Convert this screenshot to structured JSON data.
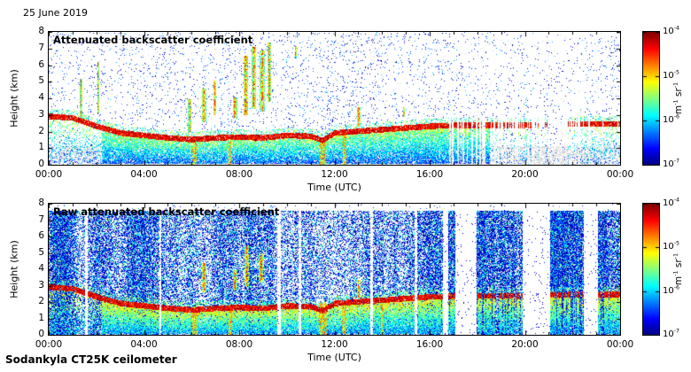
{
  "header": {
    "date": "25 June 2019"
  },
  "footer": {
    "instrument": "Sodankyla CT25K ceilometer"
  },
  "chart_data": [
    {
      "type": "heatmap",
      "title": "Attenuated backscatter coefficient",
      "xlabel": "Time (UTC)",
      "ylabel": "Height (km)",
      "x_ticks": [
        "00:00",
        "04:00",
        "08:00",
        "12:00",
        "16:00",
        "20:00",
        "00:00"
      ],
      "x_range_hours": [
        0,
        24
      ],
      "y_ticks": [
        0,
        1,
        2,
        3,
        4,
        5,
        6,
        7,
        8
      ],
      "ylim": [
        0,
        8
      ],
      "colorbar": {
        "scale": "log",
        "colormap": "jet",
        "vmin": 1e-07,
        "vmax": 0.0001,
        "tick_exponents": [
          -4,
          -5,
          -6,
          -7
        ],
        "unit": "m^-1 sr^-1"
      },
      "seed": 7,
      "noise": {
        "density": 0.04,
        "top_km": 8,
        "base": 0.04,
        "range": 0.3,
        "pow": 2,
        "gray_mix": 0.35
      },
      "gray": {
        "density": 0.38,
        "top_km": 1.15
      },
      "fill": {
        "density": 0.8,
        "base": 0.2,
        "grad": 0.35,
        "until": 18.5,
        "sparse_before": 2.2
      },
      "layer": {
        "hours": [
          0,
          1,
          2,
          3,
          4,
          5,
          6,
          7,
          8,
          9,
          10,
          11,
          11.5,
          12,
          13,
          14,
          15,
          16,
          17,
          18,
          19,
          20,
          21,
          22,
          23,
          24
        ],
        "top_km": [
          2.95,
          2.85,
          2.35,
          1.95,
          1.8,
          1.65,
          1.55,
          1.65,
          1.7,
          1.65,
          1.8,
          1.75,
          1.5,
          1.95,
          2.05,
          2.15,
          2.25,
          2.35,
          2.4,
          2.4,
          2.4,
          2.4,
          2.45,
          2.5,
          2.5,
          2.5
        ],
        "coverage": [
          1,
          1,
          1,
          1,
          1,
          1,
          1,
          1,
          1,
          1,
          1,
          1,
          1,
          1,
          1,
          1,
          1,
          1,
          0.85,
          0.7,
          0.45,
          0.5,
          0.12,
          0.12,
          0.9,
          0.95
        ]
      },
      "clouds": [
        {
          "t": 1.35,
          "w": 0.05,
          "base": 2.9,
          "top": 5.2
        },
        {
          "t": 2.05,
          "w": 0.04,
          "base": 3.1,
          "top": 6.2
        },
        {
          "t": 5.9,
          "w": 0.06,
          "base": 2.0,
          "top": 4.0
        },
        {
          "t": 6.5,
          "w": 0.09,
          "base": 2.6,
          "top": 4.6
        },
        {
          "t": 6.95,
          "w": 0.06,
          "base": 3.0,
          "top": 5.1
        },
        {
          "t": 7.8,
          "w": 0.09,
          "base": 2.8,
          "top": 4.1
        },
        {
          "t": 8.25,
          "w": 0.1,
          "base": 3.0,
          "top": 6.6
        },
        {
          "t": 8.6,
          "w": 0.09,
          "base": 3.4,
          "top": 7.2
        },
        {
          "t": 8.95,
          "w": 0.1,
          "base": 3.2,
          "top": 6.9
        },
        {
          "t": 9.25,
          "w": 0.07,
          "base": 3.8,
          "top": 7.4
        },
        {
          "t": 10.35,
          "w": 0.04,
          "base": 6.4,
          "top": 7.2
        },
        {
          "t": 13.0,
          "w": 0.08,
          "base": 2.3,
          "top": 3.5
        },
        {
          "t": 14.9,
          "w": 0.04,
          "base": 2.9,
          "top": 3.5
        }
      ],
      "precip": [
        {
          "t": 6.1,
          "w": 0.1,
          "top": 1.6
        },
        {
          "t": 7.6,
          "w": 0.06,
          "top": 1.7
        },
        {
          "t": 11.5,
          "w": 0.12,
          "top": 1.6
        },
        {
          "t": 12.4,
          "w": 0.08,
          "top": 2.0
        }
      ],
      "gaps": []
    },
    {
      "type": "heatmap",
      "title": "Raw attenuated backscatter coefficient",
      "xlabel": "Time (UTC)",
      "ylabel": "Height (km)",
      "x_ticks": [
        "00:00",
        "04:00",
        "08:00",
        "12:00",
        "16:00",
        "20:00",
        "00:00"
      ],
      "x_range_hours": [
        0,
        24
      ],
      "y_ticks": [
        0,
        1,
        2,
        3,
        4,
        5,
        6,
        7,
        8
      ],
      "ylim": [
        0,
        8
      ],
      "colorbar": {
        "scale": "log",
        "colormap": "jet",
        "vmin": 1e-07,
        "vmax": 0.0001,
        "tick_exponents": [
          -4,
          -5,
          -6,
          -7
        ],
        "unit": "m^-1 sr^-1"
      },
      "seed": 13,
      "noise": {
        "density": 0.78,
        "top_km": 7.6,
        "base": 0.03,
        "range": 0.5,
        "pow": 2.2,
        "gray_mix": 0.08
      },
      "gray": {
        "density": 0.25,
        "top_km": 0.9
      },
      "fill": {
        "density": 0.85,
        "base": 0.25,
        "grad": 0.38,
        "until": 24,
        "sparse_before": 2.2
      },
      "layer": {
        "hours": [
          0,
          1,
          2,
          3,
          4,
          5,
          6,
          7,
          8,
          9,
          10,
          11,
          11.5,
          12,
          13,
          14,
          15,
          16,
          17,
          18,
          19,
          20,
          21,
          22,
          23,
          24
        ],
        "top_km": [
          2.95,
          2.85,
          2.35,
          1.95,
          1.8,
          1.65,
          1.55,
          1.65,
          1.7,
          1.65,
          1.8,
          1.75,
          1.5,
          1.95,
          2.05,
          2.15,
          2.25,
          2.35,
          2.4,
          2.4,
          2.4,
          2.4,
          2.45,
          2.5,
          2.5,
          2.5
        ],
        "coverage": [
          1,
          1,
          1,
          1,
          1,
          1,
          1,
          1,
          1,
          1,
          1,
          1,
          1,
          1,
          1,
          1,
          1,
          1,
          0.9,
          0.8,
          0.7,
          0.75,
          0.6,
          0.6,
          0.9,
          0.95
        ]
      },
      "clouds": [
        {
          "t": 6.5,
          "w": 0.09,
          "base": 2.6,
          "top": 4.4
        },
        {
          "t": 7.8,
          "w": 0.09,
          "base": 2.8,
          "top": 4.0
        },
        {
          "t": 8.3,
          "w": 0.1,
          "base": 3.0,
          "top": 5.5
        },
        {
          "t": 8.9,
          "w": 0.1,
          "base": 3.2,
          "top": 5.0
        },
        {
          "t": 13.0,
          "w": 0.08,
          "base": 2.3,
          "top": 3.4
        }
      ],
      "precip": [
        {
          "t": 6.1,
          "w": 0.14,
          "top": 1.7
        },
        {
          "t": 7.6,
          "w": 0.08,
          "top": 1.8
        },
        {
          "t": 11.5,
          "w": 0.18,
          "top": 2.0
        },
        {
          "t": 12.4,
          "w": 0.1,
          "top": 2.1
        },
        {
          "t": 14.0,
          "w": 0.06,
          "top": 2.2
        }
      ],
      "gaps": [
        [
          1.52,
          1.62
        ],
        [
          4.62,
          4.72
        ],
        [
          9.58,
          9.72
        ],
        [
          10.47,
          10.58
        ],
        [
          13.47,
          13.6
        ],
        [
          15.35,
          15.45
        ],
        [
          16.55,
          16.75
        ],
        [
          17.05,
          17.95
        ],
        [
          19.9,
          21.05
        ],
        [
          22.45,
          23.05
        ]
      ]
    }
  ]
}
